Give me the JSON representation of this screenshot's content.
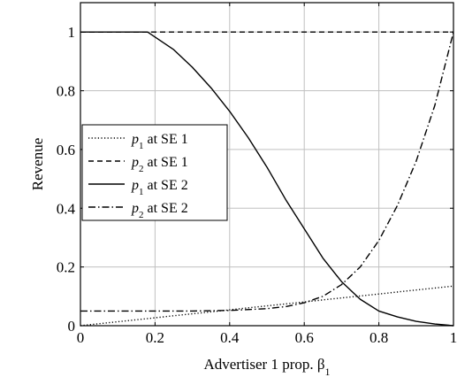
{
  "chart_data": {
    "type": "line",
    "title": "",
    "xlabel": "Advertiser 1 prop. β",
    "xlabel_subscript": "1",
    "ylabel": "Revenue",
    "xlim": [
      0,
      1
    ],
    "ylim": [
      0,
      1.1
    ],
    "grid": true,
    "legend_position": "center-left",
    "x_ticks": [
      0,
      0.2,
      0.4,
      0.6,
      0.8,
      1
    ],
    "x_tick_labels": [
      "0",
      "0.2",
      "0.4",
      "0.6",
      "0.8",
      "1"
    ],
    "y_ticks": [
      0,
      0.2,
      0.4,
      0.6,
      0.8,
      1
    ],
    "y_tick_labels": [
      "0",
      "0.2",
      "0.4",
      "0.6",
      "0.8",
      "1"
    ],
    "series": [
      {
        "name": "p1 at SE 1",
        "legend": {
          "var": "p",
          "sub": "1",
          "rest": " at SE 1"
        },
        "dash": "dotted",
        "x": [
          0,
          0.2,
          0.4,
          0.6,
          0.8,
          1
        ],
        "y": [
          0,
          0.027,
          0.054,
          0.081,
          0.108,
          0.135
        ]
      },
      {
        "name": "p2 at SE 1",
        "legend": {
          "var": "p",
          "sub": "2",
          "rest": " at SE 1"
        },
        "dash": "dashed",
        "x": [
          0,
          0.2,
          0.4,
          0.6,
          0.8,
          1
        ],
        "y": [
          1,
          1,
          1,
          1,
          1,
          1
        ]
      },
      {
        "name": "p1 at SE 2",
        "legend": {
          "var": "p",
          "sub": "1",
          "rest": " at SE 2"
        },
        "dash": "solid",
        "x": [
          0,
          0.1,
          0.18,
          0.25,
          0.3,
          0.35,
          0.4,
          0.45,
          0.5,
          0.55,
          0.6,
          0.65,
          0.7,
          0.75,
          0.8,
          0.85,
          0.9,
          0.95,
          1
        ],
        "y": [
          1,
          1,
          1,
          0.94,
          0.88,
          0.81,
          0.73,
          0.64,
          0.54,
          0.43,
          0.33,
          0.23,
          0.15,
          0.09,
          0.05,
          0.03,
          0.015,
          0.006,
          0
        ]
      },
      {
        "name": "p2 at SE 2",
        "legend": {
          "var": "p",
          "sub": "2",
          "rest": " at SE 2"
        },
        "dash": "dashdot",
        "x": [
          0,
          0.2,
          0.3,
          0.4,
          0.5,
          0.55,
          0.6,
          0.65,
          0.7,
          0.75,
          0.8,
          0.85,
          0.9,
          0.95,
          1
        ],
        "y": [
          0.05,
          0.05,
          0.05,
          0.052,
          0.058,
          0.065,
          0.078,
          0.1,
          0.14,
          0.2,
          0.29,
          0.41,
          0.56,
          0.75,
          1
        ]
      }
    ]
  }
}
